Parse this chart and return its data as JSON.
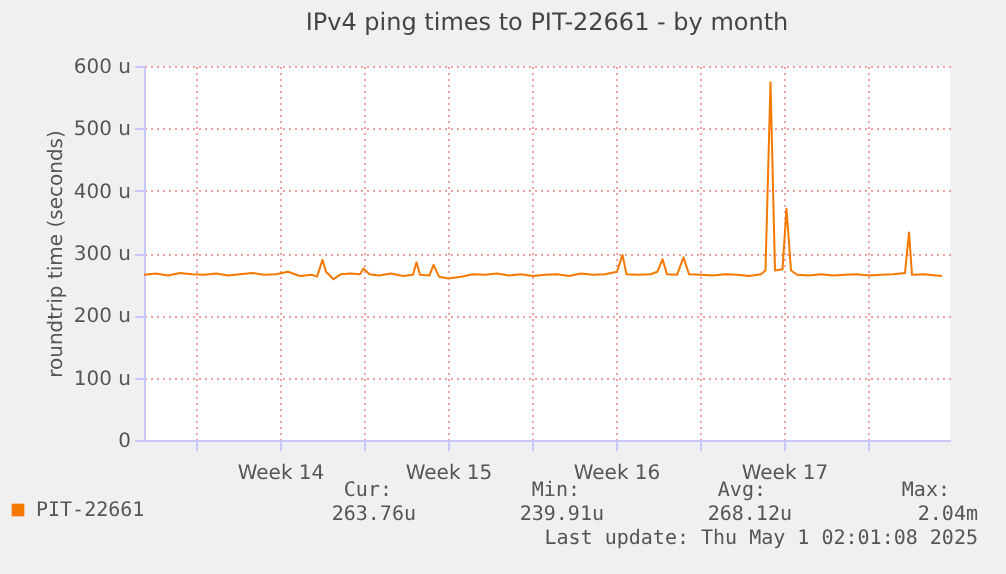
{
  "chart_data": {
    "type": "line",
    "title": "IPv4 ping times to PIT-22661 - by month",
    "ylabel": "roundtrip time (seconds)",
    "xlim": [
      "2025-03-28T20:00",
      "2025-05-01T10:00"
    ],
    "xticks": [
      {
        "value": "2025-03-31",
        "label": null
      },
      {
        "value": "2025-04-03T12:00",
        "label": "Week 14"
      },
      {
        "value": "2025-04-07",
        "label": null
      },
      {
        "value": "2025-04-10T12:00",
        "label": "Week 15"
      },
      {
        "value": "2025-04-14",
        "label": null
      },
      {
        "value": "2025-04-17T12:00",
        "label": "Week 16"
      },
      {
        "value": "2025-04-21",
        "label": null
      },
      {
        "value": "2025-04-24T12:00",
        "label": "Week 17"
      },
      {
        "value": "2025-04-28",
        "label": null
      }
    ],
    "ylim": [
      0,
      600
    ],
    "yticks": [
      0,
      {
        "value": 100,
        "label": "100 u"
      },
      {
        "value": 200,
        "label": "200 u"
      },
      {
        "value": 300,
        "label": "300 u"
      },
      {
        "value": 400,
        "label": "400 u"
      },
      {
        "value": 500,
        "label": "500 u"
      },
      {
        "value": 600,
        "label": "600 u"
      }
    ],
    "grid": true,
    "legend": "bottom left",
    "marker": "none",
    "line_style": "solid",
    "x": [
      "2025-03-28T20:00",
      "2025-03-29T08:00",
      "2025-03-29T20:00",
      "2025-03-30T08:00",
      "2025-03-30T20:00",
      "2025-03-31T08:00",
      "2025-03-31T20:00",
      "2025-04-01T08:00",
      "2025-04-01T20:00",
      "2025-04-02T08:00",
      "2025-04-02T20:00",
      "2025-04-03T08:00",
      "2025-04-03T20:00",
      "2025-04-04T08:00",
      "2025-04-04T20:00",
      "2025-04-05T01:00",
      "2025-04-05T06:30",
      "2025-04-05T10:00",
      "2025-04-05T17:30",
      "2025-04-06T01:00",
      "2025-04-06T10:30",
      "2025-04-06T20:00",
      "2025-04-06T23:30",
      "2025-04-07T05:30",
      "2025-04-07T15:00",
      "2025-04-08T03:00",
      "2025-04-08T15:00",
      "2025-04-09T01:00",
      "2025-04-09T04:30",
      "2025-04-09T08:00",
      "2025-04-09T17:30",
      "2025-04-09T21:30",
      "2025-04-10T03:00",
      "2025-04-10T12:30",
      "2025-04-11T01:00",
      "2025-04-11T13:00",
      "2025-04-12T01:00",
      "2025-04-12T13:00",
      "2025-04-13T01:00",
      "2025-04-13T13:00",
      "2025-04-14T01:00",
      "2025-04-14T13:00",
      "2025-04-15T01:00",
      "2025-04-15T13:00",
      "2025-04-16T01:00",
      "2025-04-16T13:00",
      "2025-04-17T01:00",
      "2025-04-17T13:00",
      "2025-04-17T18:30",
      "2025-04-17T22:30",
      "2025-04-18T10:30",
      "2025-04-18T22:30",
      "2025-04-19T05:30",
      "2025-04-19T10:30",
      "2025-04-19T15:00",
      "2025-04-20T01:00",
      "2025-04-20T07:30",
      "2025-04-20T13:00",
      "2025-04-21T01:00",
      "2025-04-21T13:00",
      "2025-04-22T01:00",
      "2025-04-22T13:00",
      "2025-04-23T01:00",
      "2025-04-23T13:00",
      "2025-04-23T17:30",
      "2025-04-23T22:30",
      "2025-04-24T03:00",
      "2025-04-24T10:30",
      "2025-04-24T14:30",
      "2025-04-24T19:00",
      "2025-04-25T01:00",
      "2025-04-25T13:00",
      "2025-04-26T01:00",
      "2025-04-26T13:00",
      "2025-04-27T01:00",
      "2025-04-27T13:00",
      "2025-04-28T01:00",
      "2025-04-28T13:00",
      "2025-04-29T01:00",
      "2025-04-29T13:00",
      "2025-04-29T17:00",
      "2025-04-29T20:00",
      "2025-04-30T08:00",
      "2025-04-30T20:00",
      "2025-05-01T02:00"
    ],
    "series": [
      {
        "name": "PIT-22661",
        "color": "#f57900",
        "values": [
          265,
          267,
          264,
          268,
          266,
          265,
          267,
          264,
          266,
          268,
          265,
          266,
          270,
          263,
          265,
          262,
          289,
          270,
          258,
          266,
          267,
          266,
          275,
          266,
          264,
          267,
          263,
          265,
          285,
          265,
          264,
          281,
          262,
          259,
          262,
          266,
          265,
          267,
          264,
          266,
          263,
          265,
          266,
          263,
          267,
          265,
          266,
          270,
          297,
          266,
          265,
          266,
          270,
          290,
          266,
          265,
          293,
          266,
          265,
          264,
          266,
          265,
          263,
          266,
          272,
          574,
          272,
          274,
          371,
          272,
          265,
          264,
          266,
          264,
          265,
          266,
          264,
          265,
          266,
          268,
          333,
          265,
          266,
          264,
          263
        ]
      }
    ],
    "annotations": [
      "Cur:",
      "Min:",
      "Avg:",
      "Max:",
      "263.76u",
      "239.91u",
      "268.12u",
      "2.04m",
      "Last update: Thu May  1 02:01:08 2025"
    ]
  }
}
